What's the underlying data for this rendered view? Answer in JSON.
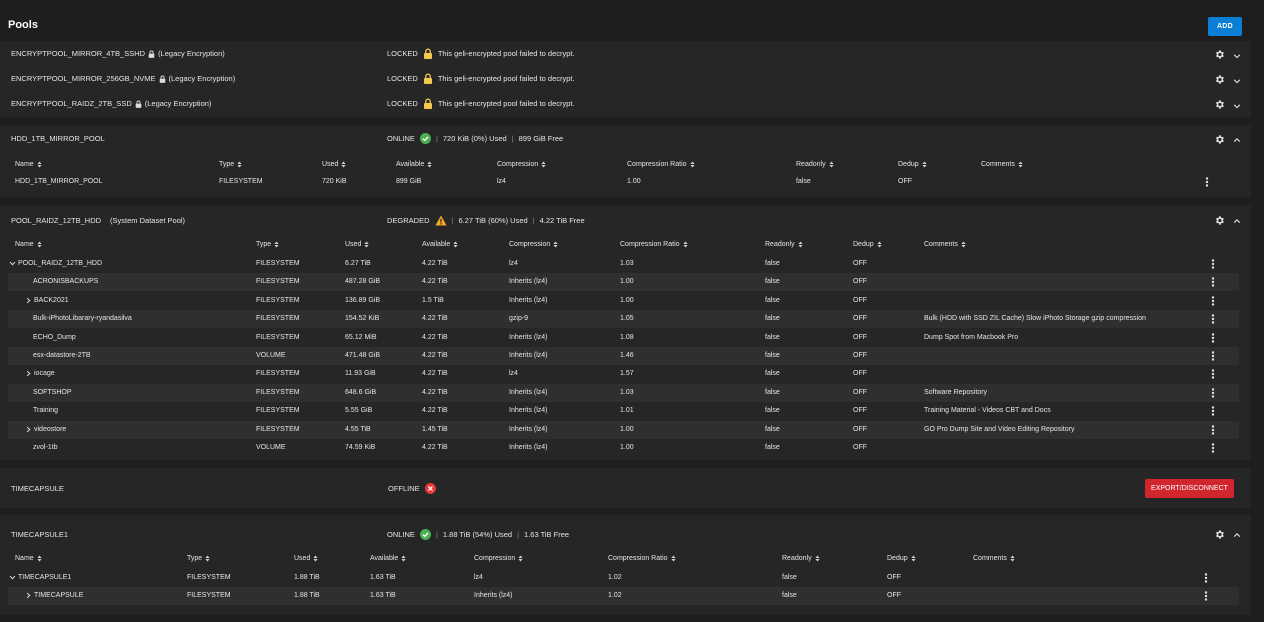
{
  "page": {
    "title": "Pools",
    "add_label": "ADD"
  },
  "locked_pools": [
    {
      "name": "ENCRYPTPOOL_MIRROR_4TB_SSHD",
      "encryption": "(Legacy Encryption)",
      "status": "LOCKED",
      "message": "This geli-encrypted pool failed to decrypt."
    },
    {
      "name": "ENCRYPTPOOL_MIRROR_256GB_NVME",
      "encryption": "(Legacy Encryption)",
      "status": "LOCKED",
      "message": "This geli-encrypted pool failed to decrypt."
    },
    {
      "name": "ENCRYPTPOOL_RAIDZ_2TB_SSD",
      "encryption": "(Legacy Encryption)",
      "status": "LOCKED",
      "message": "This geli-encrypted pool failed to decrypt."
    }
  ],
  "columns": {
    "name": "Name",
    "type": "Type",
    "used": "Used",
    "available": "Available",
    "compression": "Compression",
    "ratio": "Compression Ratio",
    "readonly": "Readonly",
    "dedup": "Dedup",
    "comments": "Comments"
  },
  "hdd_pool": {
    "name": "HDD_1TB_MIRROR_POOL",
    "status": "ONLINE",
    "used": "720 KiB (0%) Used",
    "free": "899 GiB Free",
    "rows": [
      {
        "name": "HDD_1TB_MIRROR_POOL",
        "type": "FILESYSTEM",
        "used": "720 KiB",
        "available": "899 GiB",
        "compression": "lz4",
        "ratio": "1.00",
        "readonly": "false",
        "dedup": "OFF",
        "comments": ""
      }
    ]
  },
  "raidz_pool": {
    "name": "POOL_RAIDZ_12TB_HDD",
    "note": "(System Dataset Pool)",
    "status": "DEGRADED",
    "used": "6.27 TiB (60%) Used",
    "free": "4.22 TiB Free",
    "rows": [
      {
        "name": "POOL_RAIDZ_12TB_HDD",
        "type": "FILESYSTEM",
        "used": "6.27 TiB",
        "available": "4.22 TiB",
        "compression": "lz4",
        "ratio": "1.03",
        "readonly": "false",
        "dedup": "OFF",
        "comments": "",
        "toggle": "down",
        "indent": 0
      },
      {
        "name": "ACRONISBACKUPS",
        "type": "FILESYSTEM",
        "used": "487.28 GiB",
        "available": "4.22 TiB",
        "compression": "Inherits (lz4)",
        "ratio": "1.00",
        "readonly": "false",
        "dedup": "OFF",
        "comments": "",
        "toggle": "",
        "indent": 1
      },
      {
        "name": "BACK2021",
        "type": "FILESYSTEM",
        "used": "136.89 GiB",
        "available": "1.5 TiB",
        "compression": "Inherits (lz4)",
        "ratio": "1.00",
        "readonly": "false",
        "dedup": "OFF",
        "comments": "",
        "toggle": "right",
        "indent": 1
      },
      {
        "name": "Bulk-iPhotoLibarary-ryandasilva",
        "type": "FILESYSTEM",
        "used": "154.52 KiB",
        "available": "4.22 TiB",
        "compression": "gzip-9",
        "ratio": "1.05",
        "readonly": "false",
        "dedup": "OFF",
        "comments": "Bulk (HDD with SSD ZIL Cache) Slow iPhoto Storage gzip compression",
        "toggle": "",
        "indent": 1
      },
      {
        "name": "ECHO_Dump",
        "type": "FILESYSTEM",
        "used": "65.12 MiB",
        "available": "4.22 TiB",
        "compression": "Inherits (lz4)",
        "ratio": "1.08",
        "readonly": "false",
        "dedup": "OFF",
        "comments": "Dump Spot from Macbook Pro",
        "toggle": "",
        "indent": 1
      },
      {
        "name": "esx-datastore-2TB",
        "type": "VOLUME",
        "used": "471.48 GiB",
        "available": "4.22 TiB",
        "compression": "Inherits (lz4)",
        "ratio": "1.46",
        "readonly": "false",
        "dedup": "OFF",
        "comments": "",
        "toggle": "",
        "indent": 1
      },
      {
        "name": "iocage",
        "type": "FILESYSTEM",
        "used": "11.93 GiB",
        "available": "4.22 TiB",
        "compression": "lz4",
        "ratio": "1.57",
        "readonly": "false",
        "dedup": "OFF",
        "comments": "",
        "toggle": "right",
        "indent": 1
      },
      {
        "name": "SOFTSHOP",
        "type": "FILESYSTEM",
        "used": "648.6 GiB",
        "available": "4.22 TiB",
        "compression": "Inherits (lz4)",
        "ratio": "1.03",
        "readonly": "false",
        "dedup": "OFF",
        "comments": "Software Repository",
        "toggle": "",
        "indent": 1
      },
      {
        "name": "Training",
        "type": "FILESYSTEM",
        "used": "5.55 GiB",
        "available": "4.22 TiB",
        "compression": "Inherits (lz4)",
        "ratio": "1.01",
        "readonly": "false",
        "dedup": "OFF",
        "comments": "Training Material - Videos CBT and Docs",
        "toggle": "",
        "indent": 1
      },
      {
        "name": "videostore",
        "type": "FILESYSTEM",
        "used": "4.55 TiB",
        "available": "1.45 TiB",
        "compression": "Inherits (lz4)",
        "ratio": "1.00",
        "readonly": "false",
        "dedup": "OFF",
        "comments": "GO Pro Dump Site and Video Editing Repository",
        "toggle": "right",
        "indent": 1
      },
      {
        "name": "zvol-1tb",
        "type": "VOLUME",
        "used": "74.59 KiB",
        "available": "4.22 TiB",
        "compression": "Inherits (lz4)",
        "ratio": "1.00",
        "readonly": "false",
        "dedup": "OFF",
        "comments": "",
        "toggle": "",
        "indent": 1
      }
    ]
  },
  "timecapsule": {
    "name": "TIMECAPSULE",
    "status": "OFFLINE",
    "export_label": "EXPORT/DISCONNECT"
  },
  "timecapsule1": {
    "name": "TIMECAPSULE1",
    "status": "ONLINE",
    "used": "1.88 TiB (54%) Used",
    "free": "1.63 TiB Free",
    "rows": [
      {
        "name": "TIMECAPSULE1",
        "type": "FILESYSTEM",
        "used": "1.88 TiB",
        "available": "1.63 TiB",
        "compression": "lz4",
        "ratio": "1.02",
        "readonly": "false",
        "dedup": "OFF",
        "comments": "",
        "toggle": "down",
        "indent": 0
      },
      {
        "name": "TIMECAPSULE",
        "type": "FILESYSTEM",
        "used": "1.88 TiB",
        "available": "1.63 TiB",
        "compression": "Inherits (lz4)",
        "ratio": "1.02",
        "readonly": "false",
        "dedup": "OFF",
        "comments": "",
        "toggle": "right",
        "indent": 1
      }
    ]
  },
  "colors": {
    "accent": "#0b7fd6",
    "danger": "#d2262f",
    "online": "#4caf50",
    "offline": "#e53935",
    "warning": "#f5a623",
    "lock": "#f2c94c"
  },
  "icons": {
    "gear": "gear-icon",
    "lock": "lock-icon",
    "check": "check-circle-icon",
    "warning": "warning-icon",
    "error": "error-circle-icon",
    "more": "more-vert-icon"
  }
}
